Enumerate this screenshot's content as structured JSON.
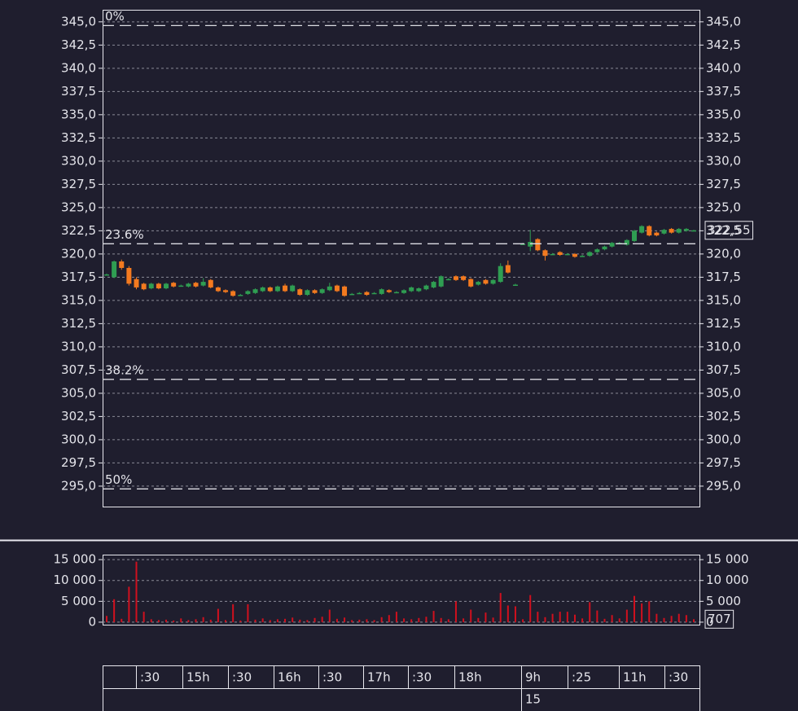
{
  "chart_data": [
    {
      "type": "candlestick",
      "ohlc": [
        [
          317.8,
          317.9,
          317.7,
          317.8
        ],
        [
          317.5,
          319.3,
          317.4,
          319.2
        ],
        [
          319.2,
          319.4,
          318.3,
          318.5
        ],
        [
          318.5,
          318.7,
          316.6,
          316.8
        ],
        [
          317.3,
          317.5,
          316.2,
          316.4
        ],
        [
          316.8,
          316.9,
          316.1,
          316.2
        ],
        [
          316.3,
          316.9,
          316.2,
          316.8
        ],
        [
          316.8,
          316.9,
          316.2,
          316.3
        ],
        [
          316.3,
          316.9,
          316.2,
          316.8
        ],
        [
          316.9,
          317.0,
          316.4,
          316.5
        ],
        [
          316.6,
          316.7,
          316.5,
          316.6
        ],
        [
          316.5,
          316.9,
          316.4,
          316.8
        ],
        [
          316.9,
          317.0,
          316.4,
          316.5
        ],
        [
          316.6,
          317.4,
          316.5,
          317.0
        ],
        [
          317.2,
          317.3,
          316.3,
          316.4
        ],
        [
          316.4,
          316.5,
          315.9,
          316.0
        ],
        [
          316.1,
          316.2,
          315.8,
          315.9
        ],
        [
          316.0,
          316.1,
          315.4,
          315.5
        ],
        [
          315.6,
          315.7,
          315.5,
          315.6
        ],
        [
          315.7,
          316.1,
          315.6,
          316.0
        ],
        [
          315.8,
          316.3,
          315.7,
          316.2
        ],
        [
          316.0,
          316.5,
          315.9,
          316.4
        ],
        [
          316.4,
          316.5,
          315.9,
          316.0
        ],
        [
          316.0,
          316.6,
          315.9,
          316.5
        ],
        [
          316.6,
          316.8,
          315.9,
          316.0
        ],
        [
          316.0,
          316.7,
          315.9,
          316.6
        ],
        [
          316.2,
          316.3,
          315.5,
          315.6
        ],
        [
          315.6,
          316.2,
          315.5,
          316.1
        ],
        [
          316.1,
          316.2,
          315.7,
          315.8
        ],
        [
          315.8,
          316.3,
          315.7,
          316.2
        ],
        [
          316.1,
          316.9,
          316.0,
          316.5
        ],
        [
          316.6,
          316.7,
          315.9,
          316.0
        ],
        [
          316.5,
          316.6,
          315.4,
          315.5
        ],
        [
          315.7,
          315.8,
          315.6,
          315.7
        ],
        [
          315.8,
          315.9,
          315.7,
          315.8
        ],
        [
          315.9,
          316.0,
          315.5,
          315.6
        ],
        [
          315.8,
          315.9,
          315.7,
          315.8
        ],
        [
          315.7,
          316.3,
          315.6,
          316.2
        ],
        [
          316.1,
          316.2,
          315.8,
          315.9
        ],
        [
          315.9,
          316.0,
          315.8,
          315.9
        ],
        [
          315.8,
          316.2,
          315.7,
          316.1
        ],
        [
          316.0,
          316.5,
          315.9,
          316.4
        ],
        [
          316.0,
          316.4,
          315.9,
          316.3
        ],
        [
          316.2,
          316.7,
          316.1,
          316.6
        ],
        [
          316.4,
          317.1,
          316.3,
          317.0
        ],
        [
          316.5,
          317.7,
          316.4,
          317.6
        ],
        [
          317.3,
          317.4,
          317.2,
          317.3
        ],
        [
          317.6,
          317.7,
          317.1,
          317.2
        ],
        [
          317.6,
          317.7,
          317.1,
          317.2
        ],
        [
          317.3,
          317.4,
          316.4,
          316.5
        ],
        [
          316.7,
          317.1,
          316.6,
          317.0
        ],
        [
          317.2,
          317.3,
          316.7,
          316.8
        ],
        [
          316.8,
          317.3,
          316.7,
          317.2
        ],
        [
          317.0,
          319.0,
          316.9,
          318.7
        ],
        [
          318.8,
          319.3,
          317.9,
          318.0
        ],
        [
          316.7,
          316.8,
          316.6,
          316.7
        ],
        [
          321.1,
          321.2,
          321.0,
          321.1
        ],
        [
          320.8,
          322.6,
          320.3,
          321.3
        ],
        [
          321.6,
          321.7,
          320.3,
          320.4
        ],
        [
          320.4,
          320.5,
          319.3,
          319.8
        ],
        [
          320.0,
          320.1,
          319.9,
          320.0
        ],
        [
          320.2,
          320.3,
          319.8,
          319.9
        ],
        [
          320.0,
          320.1,
          319.9,
          320.0
        ],
        [
          320.0,
          320.1,
          319.6,
          319.7
        ],
        [
          319.8,
          319.9,
          319.7,
          319.8
        ],
        [
          319.8,
          320.3,
          319.7,
          320.2
        ],
        [
          320.2,
          320.6,
          320.1,
          320.5
        ],
        [
          320.5,
          320.9,
          320.4,
          320.8
        ],
        [
          320.8,
          321.3,
          320.7,
          321.2
        ],
        [
          321.2,
          321.3,
          321.1,
          321.2
        ],
        [
          321.0,
          321.6,
          320.9,
          321.5
        ],
        [
          321.4,
          322.6,
          321.3,
          322.5
        ],
        [
          322.3,
          323.1,
          322.2,
          323.0
        ],
        [
          323.0,
          323.1,
          321.9,
          322.0
        ],
        [
          322.3,
          322.4,
          321.9,
          322.0
        ],
        [
          322.2,
          322.7,
          322.1,
          322.6
        ],
        [
          322.7,
          322.8,
          322.2,
          322.3
        ],
        [
          322.3,
          322.8,
          322.2,
          322.7
        ],
        [
          322.5,
          322.8,
          322.4,
          322.7
        ],
        [
          322.55,
          322.6,
          322.5,
          322.55
        ]
      ],
      "up_color": "#2f9e52",
      "down_color": "#f47a1f",
      "ylim": [
        292.8,
        346.3
      ],
      "yticks": [
        {
          "value": 345,
          "label": "345,0"
        },
        {
          "value": 342.5,
          "label": "342,5"
        },
        {
          "value": 340,
          "label": "340,0"
        },
        {
          "value": 337.5,
          "label": "337,5"
        },
        {
          "value": 335,
          "label": "335,0"
        },
        {
          "value": 332.5,
          "label": "332,5"
        },
        {
          "value": 330,
          "label": "330,0"
        },
        {
          "value": 327.5,
          "label": "327,5"
        },
        {
          "value": 325,
          "label": "325,0"
        },
        {
          "value": 322.5,
          "label": "322,5"
        },
        {
          "value": 320,
          "label": "320,0"
        },
        {
          "value": 317.5,
          "label": "317,5"
        },
        {
          "value": 315,
          "label": "315,0"
        },
        {
          "value": 312.5,
          "label": "312,5"
        },
        {
          "value": 310,
          "label": "310,0"
        },
        {
          "value": 307.5,
          "label": "307,5"
        },
        {
          "value": 305,
          "label": "305,0"
        },
        {
          "value": 302.5,
          "label": "302,5"
        },
        {
          "value": 300,
          "label": "300,0"
        },
        {
          "value": 297.5,
          "label": "297,5"
        },
        {
          "value": 295,
          "label": "295,0"
        }
      ],
      "grid": true,
      "levels": [
        {
          "value": 344.6,
          "label": "0%"
        },
        {
          "value": 321.1,
          "label": "23.6%"
        },
        {
          "value": 306.5,
          "label": "38.2%"
        },
        {
          "value": 294.7,
          "label": "50%"
        }
      ],
      "last": {
        "value": 322.55,
        "label": "322,55"
      }
    },
    {
      "type": "bar",
      "values": [
        1500,
        5500,
        800,
        8500,
        14500,
        2500,
        700,
        500,
        600,
        400,
        900,
        500,
        700,
        1200,
        600,
        3200,
        500,
        4300,
        400,
        4300,
        600,
        900,
        500,
        700,
        800,
        1100,
        600,
        500,
        1000,
        1300,
        3000,
        800,
        1100,
        500,
        600,
        700,
        500,
        1200,
        1700,
        2500,
        900,
        700,
        1000,
        1300,
        2700,
        1000,
        700,
        5000,
        900,
        3000,
        1000,
        2300,
        1100,
        7000,
        4000,
        3800,
        700,
        6500,
        2500,
        1200,
        2000,
        2500,
        2500,
        1800,
        900,
        4800,
        2800,
        800,
        1700,
        900,
        3000,
        6300,
        4500,
        5000,
        2000,
        1000,
        1500,
        2000,
        1700,
        707
      ],
      "color": "#d0101e",
      "ylim": [
        -600,
        16200
      ],
      "yticks": [
        {
          "value": 15000,
          "label": "15 000"
        },
        {
          "value": 10000,
          "label": "10 000"
        },
        {
          "value": 5000,
          "label": "5 000"
        },
        0
      ],
      "grid": true,
      "last": {
        "value": 707,
        "label": "707"
      }
    }
  ],
  "time_axis": {
    "labels": [
      ":30",
      "15h",
      ":30",
      "16h",
      ":30",
      "17h",
      ":30",
      "18h",
      "9h",
      ":25",
      "11h",
      ":30"
    ],
    "date": "15"
  }
}
